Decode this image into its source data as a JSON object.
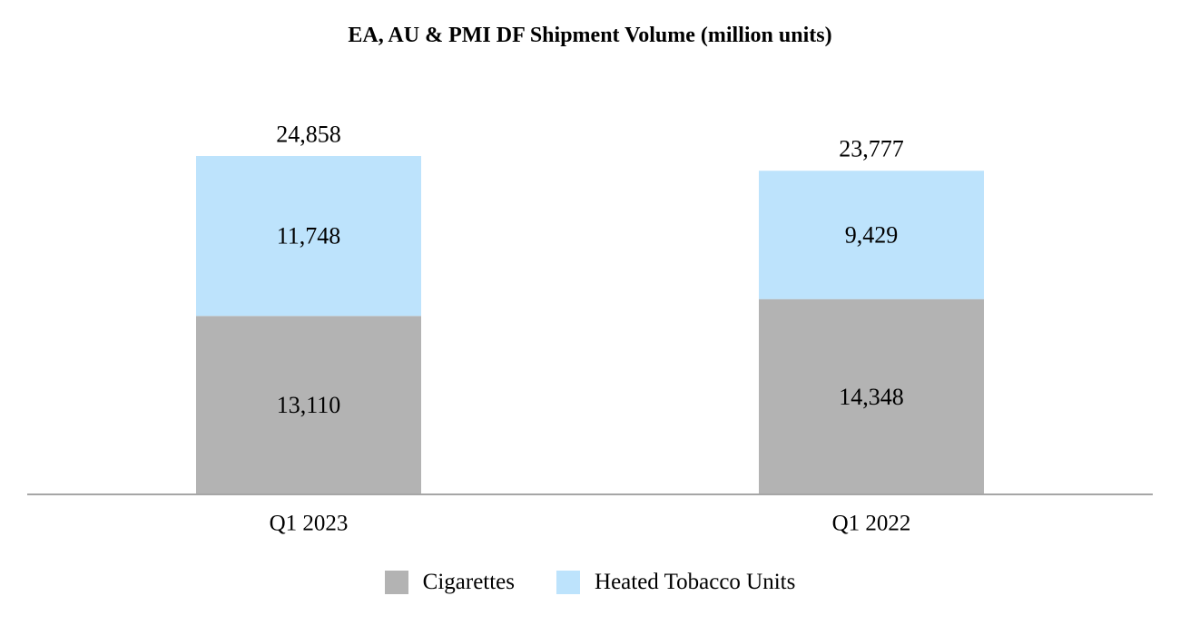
{
  "colors": {
    "cigarettes": "#b3b3b3",
    "heated_tobacco": "#bde3fc",
    "axis": "#a6a6a6"
  },
  "chart_data": {
    "type": "bar",
    "stacked": true,
    "title": "EA, AU & PMI DF Shipment Volume (million units)",
    "categories": [
      "Q1 2023",
      "Q1 2022"
    ],
    "series": [
      {
        "name": "Cigarettes",
        "values": [
          13110,
          14348
        ],
        "labels": [
          "13,110",
          "14,348"
        ]
      },
      {
        "name": "Heated Tobacco Units",
        "values": [
          11748,
          9429
        ],
        "labels": [
          "11,748",
          "9,429"
        ]
      }
    ],
    "totals": [
      24858,
      23777
    ],
    "total_labels": [
      "24,858",
      "23,777"
    ],
    "ylim": [
      0,
      24858
    ],
    "grid": false,
    "legend_position": "bottom"
  }
}
